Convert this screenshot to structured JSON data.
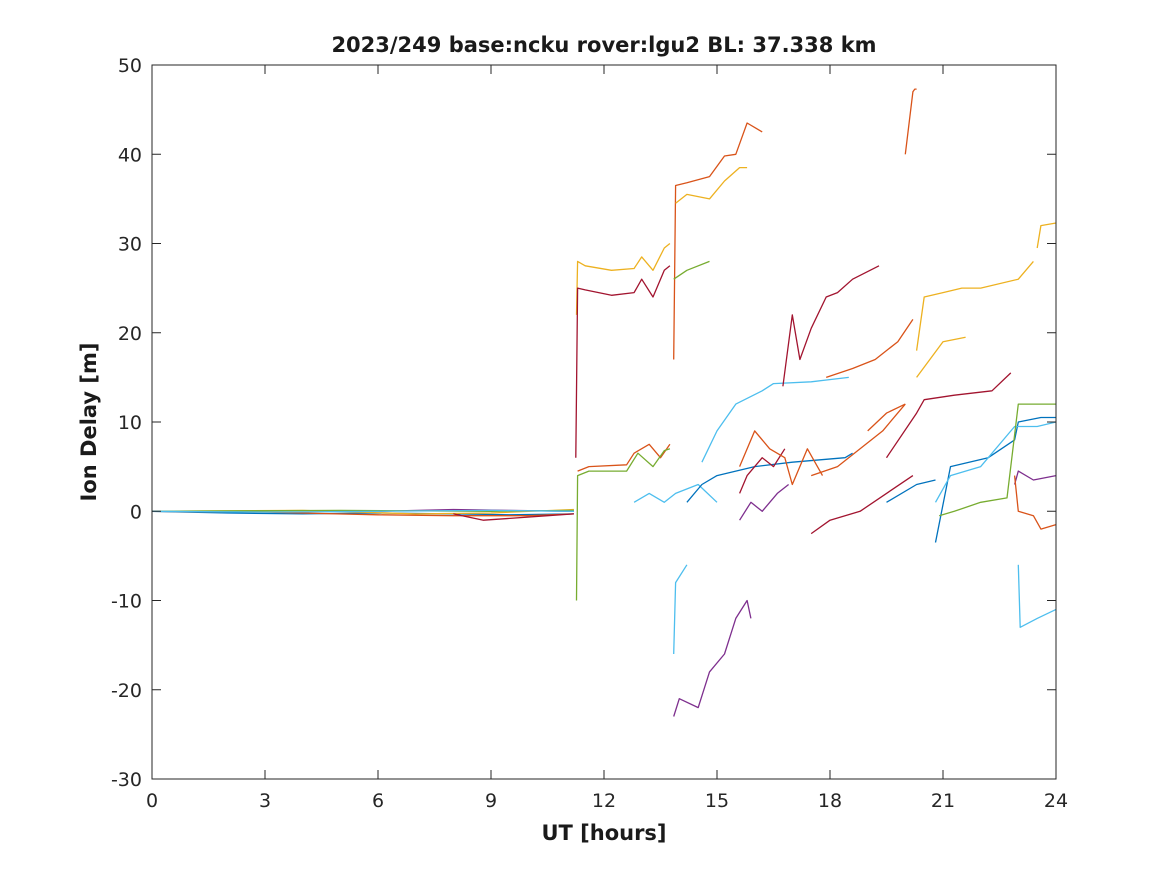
{
  "chart_data": {
    "type": "line",
    "title": "2023/249 base:ncku rover:lgu2 BL: 37.338 km",
    "xlabel": "UT [hours]",
    "ylabel": "Ion Delay [m]",
    "xlim": [
      0,
      24
    ],
    "ylim": [
      -30,
      50
    ],
    "xticks": [
      0,
      3,
      6,
      9,
      12,
      15,
      18,
      21,
      24
    ],
    "yticks": [
      -30,
      -20,
      -10,
      0,
      10,
      20,
      30,
      40,
      50
    ],
    "xtick_labels": [
      "0",
      "3",
      "6",
      "9",
      "12",
      "15",
      "18",
      "21",
      "24"
    ],
    "ytick_labels": [
      "-30",
      "-20",
      "-10",
      "0",
      "10",
      "20",
      "30",
      "40",
      "50"
    ],
    "grid": false,
    "legend": "none",
    "colors": [
      "#0072bd",
      "#d95319",
      "#edb120",
      "#7e2f8e",
      "#77ac30",
      "#4dbeee",
      "#a2142f"
    ],
    "series": [
      {
        "color": "#0072bd",
        "x": [
          0,
          2,
          4,
          6,
          8,
          9.5,
          11.2
        ],
        "y": [
          0,
          -0.2,
          -0.3,
          -0.2,
          -0.3,
          -0.4,
          -0.3
        ]
      },
      {
        "color": "#d95319",
        "x": [
          0,
          3,
          6,
          8,
          10,
          11.2
        ],
        "y": [
          0,
          -0.1,
          -0.4,
          -0.5,
          -0.5,
          -0.3
        ]
      },
      {
        "color": "#edb120",
        "x": [
          0,
          4,
          7,
          9,
          11.2
        ],
        "y": [
          0,
          0.1,
          -0.3,
          -0.2,
          0.2
        ]
      },
      {
        "color": "#7e2f8e",
        "x": [
          6,
          8,
          9.5,
          11.2
        ],
        "y": [
          0,
          0.2,
          0.1,
          0
        ]
      },
      {
        "color": "#77ac30",
        "x": [
          0,
          5,
          9,
          11.2
        ],
        "y": [
          0,
          0.1,
          0,
          0.1
        ]
      },
      {
        "color": "#4dbeee",
        "x": [
          0,
          3,
          6,
          9,
          11.2
        ],
        "y": [
          0,
          -0.1,
          0,
          0.1,
          0
        ]
      },
      {
        "color": "#a2142f",
        "x": [
          8,
          8.8,
          9.5,
          10.5,
          11.2
        ],
        "y": [
          -0.3,
          -1,
          -0.8,
          -0.5,
          -0.3
        ]
      },
      {
        "color": "#edb120",
        "x": [
          11.27,
          11.3,
          11.5,
          12.2,
          12.8,
          13.0,
          13.3,
          13.6,
          13.75
        ],
        "y": [
          22,
          28,
          27.5,
          27,
          27.2,
          28.5,
          27,
          29.5,
          30
        ]
      },
      {
        "color": "#a2142f",
        "x": [
          11.25,
          11.3,
          11.5,
          12.2,
          12.8,
          13.0,
          13.3,
          13.6,
          13.75
        ],
        "y": [
          6,
          25,
          24.8,
          24.2,
          24.5,
          26,
          24,
          27,
          27.5
        ]
      },
      {
        "color": "#d95319",
        "x": [
          11.3,
          11.6,
          12.6,
          12.8,
          13.2,
          13.5,
          13.75
        ],
        "y": [
          4.5,
          5,
          5.2,
          6.5,
          7.5,
          6,
          7.5
        ]
      },
      {
        "color": "#77ac30",
        "x": [
          11.27,
          11.3,
          11.6,
          12.6,
          12.9,
          13.3,
          13.6,
          13.75
        ],
        "y": [
          -10,
          4,
          4.5,
          4.5,
          6.5,
          5,
          6.8,
          7
        ]
      },
      {
        "color": "#4dbeee",
        "x": [
          12.8,
          13.2,
          13.6,
          13.9,
          14.5,
          15.0
        ],
        "y": [
          1,
          2,
          1,
          2,
          3,
          1
        ]
      },
      {
        "color": "#d95319",
        "x": [
          13.85,
          13.9,
          14.2,
          14.8,
          15.2,
          15.5,
          15.8,
          16.2
        ],
        "y": [
          17,
          36.5,
          36.8,
          37.5,
          39.8,
          40,
          43.5,
          42.5
        ]
      },
      {
        "color": "#edb120",
        "x": [
          13.9,
          14.2,
          14.8,
          15.2,
          15.6,
          15.8
        ],
        "y": [
          34.5,
          35.5,
          35,
          37,
          38.5,
          38.5
        ]
      },
      {
        "color": "#77ac30",
        "x": [
          13.85,
          14.2,
          14.8
        ],
        "y": [
          26,
          27,
          28
        ]
      },
      {
        "color": "#7e2f8e",
        "x": [
          13.85,
          14.0,
          14.5,
          14.8,
          15.2,
          15.5,
          15.8,
          15.9
        ],
        "y": [
          -23,
          -21,
          -22,
          -18,
          -16,
          -12,
          -10,
          -12
        ]
      },
      {
        "color": "#4dbeee",
        "x": [
          13.85,
          13.9,
          14.2
        ],
        "y": [
          -16,
          -8,
          -6
        ]
      },
      {
        "color": "#0072bd",
        "x": [
          14.2,
          14.6,
          15,
          15.5,
          16,
          17,
          18.4,
          18.6
        ],
        "y": [
          1,
          3,
          4,
          4.5,
          5,
          5.5,
          6,
          6.5
        ]
      },
      {
        "color": "#4dbeee",
        "x": [
          14.6,
          15.0,
          15.5,
          16.2,
          16.5,
          17.5,
          18.5
        ],
        "y": [
          5.5,
          9,
          12,
          13.5,
          14.3,
          14.5,
          15
        ]
      },
      {
        "color": "#a2142f",
        "x": [
          15.6,
          15.8,
          16.2,
          16.5,
          16.8
        ],
        "y": [
          2,
          4,
          6,
          5,
          7
        ]
      },
      {
        "color": "#7e2f8e",
        "x": [
          15.6,
          15.9,
          16.2,
          16.6,
          16.9
        ],
        "y": [
          -1,
          1,
          0,
          2,
          3
        ]
      },
      {
        "color": "#d95319",
        "x": [
          15.6,
          16,
          16.4,
          16.8,
          17.0,
          17.4,
          17.8
        ],
        "y": [
          5,
          9,
          7,
          6,
          3,
          7,
          4
        ]
      },
      {
        "color": "#a2142f",
        "x": [
          16.75,
          17.0,
          17.2,
          17.5,
          17.9,
          18.2,
          18.6,
          19.3
        ],
        "y": [
          14,
          22,
          17,
          20.5,
          24,
          24.5,
          26,
          27.5
        ]
      },
      {
        "color": "#d95319",
        "x": [
          17.5,
          18.2,
          18.8,
          19.4,
          20.0
        ],
        "y": [
          4,
          5,
          7,
          9,
          12
        ]
      },
      {
        "color": "#d95319",
        "x": [
          17.9,
          18.6,
          19.2,
          19.8,
          20.2
        ],
        "y": [
          15,
          16,
          17,
          19,
          21.5
        ]
      },
      {
        "color": "#a2142f",
        "x": [
          17.5,
          18.0,
          18.8,
          19.5,
          20.2
        ],
        "y": [
          -2.5,
          -1,
          0,
          2,
          4
        ]
      },
      {
        "color": "#d95319",
        "x": [
          20.0,
          20.2,
          20.25,
          20.3
        ],
        "y": [
          40,
          47,
          47.3,
          47.3
        ]
      },
      {
        "color": "#edb120",
        "x": [
          20.3,
          20.5,
          21,
          21.5,
          22,
          23,
          23.4
        ],
        "y": [
          18,
          24,
          24.5,
          25,
          25,
          26,
          28
        ]
      },
      {
        "color": "#edb120",
        "x": [
          20.3,
          21,
          21.6
        ],
        "y": [
          15,
          19,
          19.5
        ]
      },
      {
        "color": "#edb120",
        "x": [
          23.5,
          23.6,
          24
        ],
        "y": [
          29.5,
          32,
          32.3
        ]
      },
      {
        "color": "#a2142f",
        "x": [
          19.5,
          20.3,
          20.5,
          21.3,
          22.3,
          22.8
        ],
        "y": [
          6,
          11,
          12.5,
          13,
          13.5,
          15.5
        ]
      },
      {
        "color": "#d95319",
        "x": [
          19.0,
          19.5,
          20.0
        ],
        "y": [
          9,
          11,
          12
        ]
      },
      {
        "color": "#0072bd",
        "x": [
          19.5,
          20.3,
          20.8
        ],
        "y": [
          1,
          3,
          3.5
        ]
      },
      {
        "color": "#0072bd",
        "x": [
          20.8,
          21.2,
          22.2,
          22.9,
          23.0,
          23.6,
          24
        ],
        "y": [
          -3.5,
          5,
          6,
          8,
          10,
          10.5,
          10.5
        ]
      },
      {
        "color": "#4dbeee",
        "x": [
          20.8,
          21.2,
          22,
          22.9,
          23.5,
          24
        ],
        "y": [
          1,
          4,
          5,
          9.5,
          9.5,
          10
        ]
      },
      {
        "color": "#77ac30",
        "x": [
          20.9,
          21.3,
          22,
          22.7,
          23.0,
          23.5,
          24
        ],
        "y": [
          -0.5,
          0,
          1,
          1.5,
          12,
          12,
          12
        ]
      },
      {
        "color": "#7e2f8e",
        "x": [
          22.9,
          23.0,
          23.4,
          24
        ],
        "y": [
          3,
          4.5,
          3.5,
          4
        ]
      },
      {
        "color": "#d95319",
        "x": [
          22.9,
          23.0,
          23.4,
          23.6,
          24
        ],
        "y": [
          4,
          0,
          -0.5,
          -2,
          -1.5
        ]
      },
      {
        "color": "#4dbeee",
        "x": [
          23.0,
          23.05,
          23.5,
          24
        ],
        "y": [
          -6,
          -13,
          -12,
          -11
        ]
      }
    ]
  }
}
